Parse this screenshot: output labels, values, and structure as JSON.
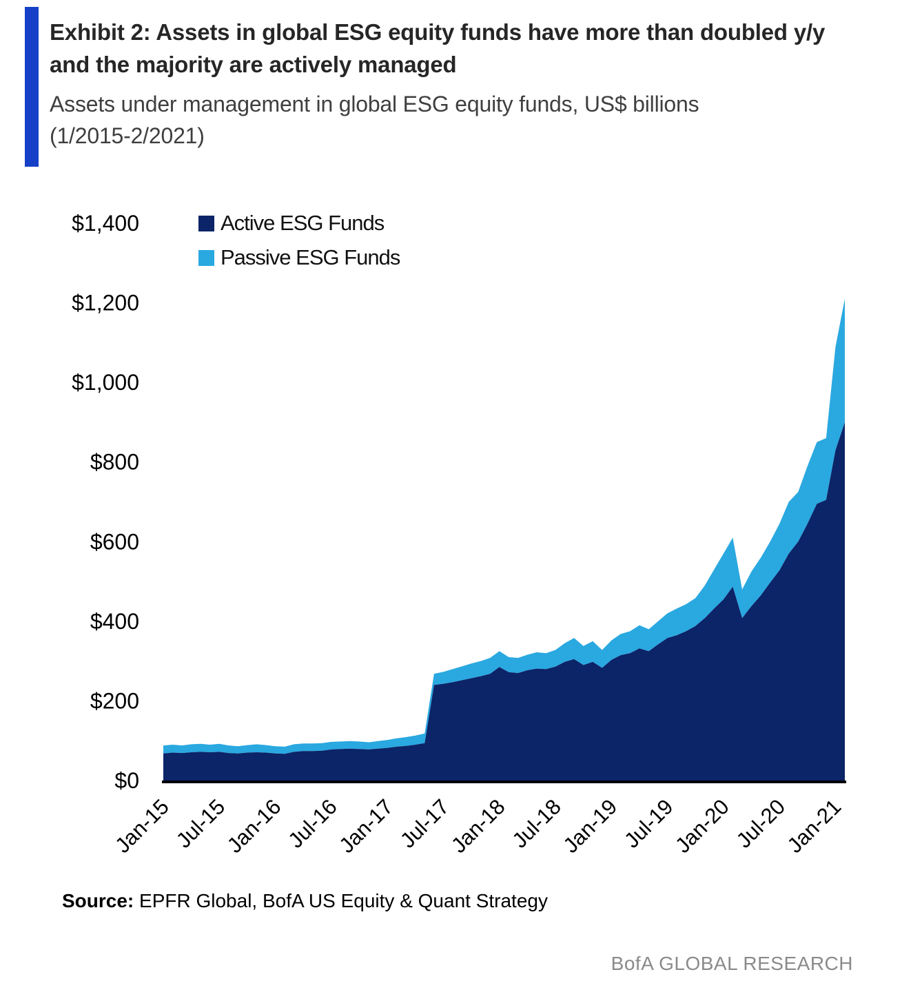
{
  "header": {
    "title": "Exhibit 2: Assets in global ESG equity funds have more than doubled y/y and the majority are actively managed",
    "subtitle": "Assets under management in global ESG equity funds, US$ billions (1/2015-2/2021)"
  },
  "legend": [
    {
      "label": "Active ESG Funds",
      "color": "#0c2468"
    },
    {
      "label": "Passive ESG Funds",
      "color": "#2aa8e0"
    }
  ],
  "footer": {
    "source_label": "Source:",
    "source_text": " EPFR Global, BofA US Equity & Quant Strategy",
    "brand": "BofA GLOBAL RESEARCH"
  },
  "accent_color": "#1640c8",
  "chart_data": {
    "type": "area",
    "stacked": true,
    "title": "Exhibit 2: Assets in global ESG equity funds have more than doubled y/y and the majority are actively managed",
    "subtitle": "Assets under management in global ESG equity funds, US$ billions (1/2015-2/2021)",
    "xlabel": "",
    "ylabel": "US$ billions",
    "ylim": [
      0,
      1400
    ],
    "grid": false,
    "legend_position": "top-left",
    "y_ticks": {
      "values": [
        0,
        200,
        400,
        600,
        800,
        1000,
        1200,
        1400
      ],
      "labels": [
        "$0",
        "$200",
        "$400",
        "$600",
        "$800",
        "$1,000",
        "$1,200",
        "$1,400"
      ]
    },
    "x_tick_indices": [
      0,
      6,
      12,
      18,
      24,
      30,
      36,
      42,
      48,
      54,
      60,
      66,
      72
    ],
    "x_tick_labels": [
      "Jan-15",
      "Jul-15",
      "Jan-16",
      "Jul-16",
      "Jan-17",
      "Jul-17",
      "Jan-18",
      "Jul-18",
      "Jan-19",
      "Jul-19",
      "Jan-20",
      "Jul-20",
      "Jan-21"
    ],
    "months": [
      "Jan-15",
      "Feb-15",
      "Mar-15",
      "Apr-15",
      "May-15",
      "Jun-15",
      "Jul-15",
      "Aug-15",
      "Sep-15",
      "Oct-15",
      "Nov-15",
      "Dec-15",
      "Jan-16",
      "Feb-16",
      "Mar-16",
      "Apr-16",
      "May-16",
      "Jun-16",
      "Jul-16",
      "Aug-16",
      "Sep-16",
      "Oct-16",
      "Nov-16",
      "Dec-16",
      "Jan-17",
      "Feb-17",
      "Mar-17",
      "Apr-17",
      "May-17",
      "Jun-17",
      "Jul-17",
      "Aug-17",
      "Sep-17",
      "Oct-17",
      "Nov-17",
      "Dec-17",
      "Jan-18",
      "Feb-18",
      "Mar-18",
      "Apr-18",
      "May-18",
      "Jun-18",
      "Jul-18",
      "Aug-18",
      "Sep-18",
      "Oct-18",
      "Nov-18",
      "Dec-18",
      "Jan-19",
      "Feb-19",
      "Mar-19",
      "Apr-19",
      "May-19",
      "Jun-19",
      "Jul-19",
      "Aug-19",
      "Sep-19",
      "Oct-19",
      "Nov-19",
      "Dec-19",
      "Jan-20",
      "Feb-20",
      "Mar-20",
      "Apr-20",
      "May-20",
      "Jun-20",
      "Jul-20",
      "Aug-20",
      "Sep-20",
      "Oct-20",
      "Nov-20",
      "Dec-20",
      "Jan-21",
      "Feb-21"
    ],
    "series": [
      {
        "name": "Active ESG Funds",
        "color": "#0c2468",
        "values": [
          68,
          70,
          69,
          71,
          72,
          71,
          72,
          69,
          68,
          70,
          71,
          70,
          68,
          67,
          72,
          74,
          74,
          75,
          78,
          79,
          80,
          79,
          78,
          80,
          82,
          85,
          87,
          90,
          94,
          240,
          243,
          247,
          252,
          257,
          262,
          268,
          285,
          272,
          270,
          277,
          281,
          280,
          286,
          298,
          305,
          290,
          298,
          283,
          303,
          315,
          320,
          332,
          325,
          342,
          358,
          365,
          375,
          388,
          408,
          432,
          455,
          487,
          408,
          438,
          465,
          497,
          528,
          570,
          600,
          645,
          695,
          705,
          830,
          900
        ]
      },
      {
        "name": "Passive ESG Funds",
        "color": "#2aa8e0",
        "values": [
          20,
          20,
          19,
          20,
          20,
          19,
          20,
          19,
          18,
          19,
          20,
          19,
          18,
          18,
          19,
          19,
          19,
          19,
          19,
          19,
          19,
          19,
          18,
          19,
          20,
          21,
          22,
          23,
          24,
          28,
          30,
          33,
          35,
          37,
          38,
          40,
          40,
          38,
          38,
          39,
          41,
          40,
          42,
          47,
          53,
          48,
          52,
          45,
          49,
          53,
          55,
          58,
          55,
          58,
          62,
          67,
          68,
          70,
          82,
          98,
          115,
          123,
          72,
          87,
          95,
          103,
          117,
          130,
          125,
          145,
          155,
          155,
          260,
          310
        ]
      }
    ]
  }
}
